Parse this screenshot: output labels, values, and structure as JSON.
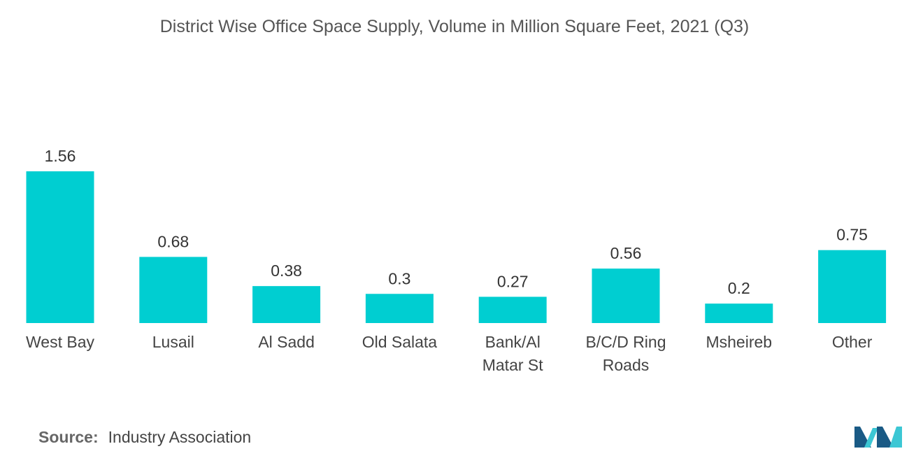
{
  "chart_data": {
    "type": "bar",
    "title": "District Wise Office Space Supply, Volume in Million Square Feet, 2021 (Q3)",
    "categories": [
      [
        "West Bay"
      ],
      [
        "Lusail"
      ],
      [
        "Al Sadd"
      ],
      [
        "Old Salata"
      ],
      [
        "Bank/Al",
        "Matar St"
      ],
      [
        "B/C/D Ring",
        "Roads"
      ],
      [
        "Msheireb"
      ],
      [
        "Other"
      ]
    ],
    "values": [
      1.56,
      0.68,
      0.38,
      0.3,
      0.27,
      0.56,
      0.2,
      0.75
    ],
    "value_labels": [
      "1.56",
      "0.68",
      "0.38",
      "0.3",
      "0.27",
      "0.56",
      "0.2",
      "0.75"
    ],
    "xlabel": "",
    "ylabel": "",
    "ylim": [
      0,
      1.56
    ],
    "grid": false,
    "legend": "none",
    "bar_color": "#00CED1"
  },
  "source": {
    "label": "Source:",
    "text": "Industry Association"
  },
  "colors": {
    "bar": "#00CED1",
    "logo_dark": "#1a5a85",
    "logo_light": "#3cc7d4"
  }
}
